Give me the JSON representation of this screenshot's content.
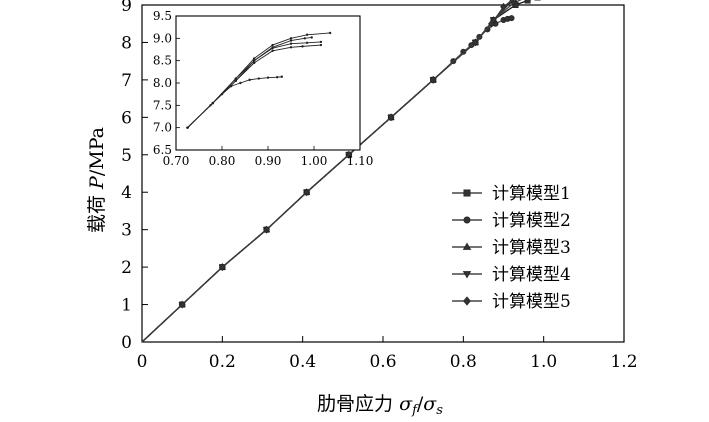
{
  "chart_data": {
    "type": "line",
    "title": "",
    "xlabel_prefix": "肋骨应力 ",
    "xlabel_sym": "σ",
    "xlabel_sub1": "f",
    "xlabel_slash": "/",
    "xlabel_sym2": "σ",
    "xlabel_sub2": "s",
    "ylabel_prefix": "载荷 ",
    "ylabel_sym": "P",
    "ylabel_unit": "/MPa",
    "xlim": [
      0,
      1.2
    ],
    "ylim": [
      0,
      9
    ],
    "x_ticks": [
      "0",
      "0.2",
      "0.4",
      "0.6",
      "0.8",
      "1.0",
      "1.2"
    ],
    "y_ticks": [
      "0",
      "1",
      "2",
      "3",
      "4",
      "5",
      "6",
      "7",
      "8",
      "9"
    ],
    "grid": false,
    "legend_position": "lower-right",
    "series": [
      {
        "name": "计算模型1",
        "marker": "square",
        "points": [
          [
            0,
            0
          ],
          [
            0.1,
            1
          ],
          [
            0.2,
            2
          ],
          [
            0.31,
            3
          ],
          [
            0.41,
            4
          ],
          [
            0.515,
            5
          ],
          [
            0.62,
            6
          ],
          [
            0.725,
            7
          ],
          [
            0.83,
            8
          ],
          [
            0.875,
            8.6
          ],
          [
            0.93,
            9.0
          ],
          [
            0.96,
            9.12
          ],
          [
            0.985,
            9.2
          ],
          [
            1.01,
            9.23
          ]
        ]
      },
      {
        "name": "计算模型2",
        "marker": "circle",
        "points": [
          [
            0,
            0
          ],
          [
            0.1,
            1
          ],
          [
            0.2,
            2
          ],
          [
            0.31,
            3
          ],
          [
            0.41,
            4
          ],
          [
            0.515,
            5
          ],
          [
            0.62,
            6
          ],
          [
            0.725,
            7
          ],
          [
            0.775,
            7.5
          ],
          [
            0.8,
            7.75
          ],
          [
            0.82,
            7.93
          ],
          [
            0.84,
            8.15
          ],
          [
            0.86,
            8.35
          ],
          [
            0.88,
            8.5
          ],
          [
            0.9,
            8.6
          ],
          [
            0.91,
            8.63
          ],
          [
            0.92,
            8.65
          ]
        ]
      },
      {
        "name": "计算模型3",
        "marker": "triangle-up",
        "points": [
          [
            0,
            0
          ],
          [
            0.1,
            1
          ],
          [
            0.2,
            2
          ],
          [
            0.31,
            3
          ],
          [
            0.41,
            4
          ],
          [
            0.515,
            5
          ],
          [
            0.62,
            6
          ],
          [
            0.725,
            7
          ],
          [
            0.83,
            8
          ],
          [
            0.875,
            8.6
          ],
          [
            0.92,
            9.1
          ],
          [
            0.95,
            9.3
          ],
          [
            0.975,
            9.42
          ],
          [
            1.0,
            9.48
          ],
          [
            1.03,
            9.5
          ]
        ]
      },
      {
        "name": "计算模型4",
        "marker": "triangle-down",
        "points": [
          [
            0,
            0
          ],
          [
            0.1,
            1
          ],
          [
            0.2,
            2
          ],
          [
            0.31,
            3
          ],
          [
            0.41,
            4
          ],
          [
            0.515,
            5
          ],
          [
            0.62,
            6
          ],
          [
            0.725,
            7
          ],
          [
            0.83,
            8
          ],
          [
            0.875,
            8.6
          ],
          [
            0.925,
            9.05
          ],
          [
            0.955,
            9.2
          ],
          [
            0.98,
            9.26
          ],
          [
            1.005,
            9.28
          ],
          [
            1.01,
            9.28
          ]
        ]
      },
      {
        "name": "计算模型5",
        "marker": "diamond",
        "points": [
          [
            0,
            0
          ],
          [
            0.1,
            1
          ],
          [
            0.2,
            2
          ],
          [
            0.31,
            3
          ],
          [
            0.41,
            4
          ],
          [
            0.515,
            5
          ],
          [
            0.62,
            6
          ],
          [
            0.725,
            7
          ],
          [
            0.83,
            8
          ],
          [
            0.87,
            8.5
          ],
          [
            0.9,
            8.95
          ],
          [
            0.93,
            9.2
          ],
          [
            0.955,
            9.32
          ],
          [
            0.975,
            9.38
          ],
          [
            0.99,
            9.4
          ]
        ]
      }
    ],
    "inset": {
      "xlim": [
        0.7,
        1.1
      ],
      "ylim": [
        6.5,
        9.5
      ],
      "x_ticks": [
        "0.70",
        "0.80",
        "0.90",
        "1.00",
        "1.10"
      ],
      "y_ticks": [
        "6.5",
        "7.0",
        "7.5",
        "8.0",
        "8.5",
        "9.0",
        "9.5"
      ],
      "series": [
        {
          "points": [
            [
              0.725,
              7.0
            ],
            [
              0.78,
              7.55
            ],
            [
              0.83,
              8.05
            ],
            [
              0.87,
              8.45
            ],
            [
              0.91,
              8.72
            ],
            [
              0.95,
              8.8
            ],
            [
              0.975,
              8.82
            ],
            [
              1.015,
              8.85
            ]
          ]
        },
        {
          "points": [
            [
              0.725,
              7.0
            ],
            [
              0.775,
              7.5
            ],
            [
              0.8,
              7.75
            ],
            [
              0.82,
              7.93
            ],
            [
              0.84,
              8.0
            ],
            [
              0.86,
              8.07
            ],
            [
              0.88,
              8.1
            ],
            [
              0.9,
              8.12
            ],
            [
              0.92,
              8.13
            ],
            [
              0.93,
              8.14
            ]
          ]
        },
        {
          "points": [
            [
              0.725,
              7.0
            ],
            [
              0.78,
              7.55
            ],
            [
              0.83,
              8.1
            ],
            [
              0.87,
              8.55
            ],
            [
              0.91,
              8.85
            ],
            [
              0.95,
              9.0
            ],
            [
              0.985,
              9.08
            ],
            [
              1.035,
              9.12
            ]
          ]
        },
        {
          "points": [
            [
              0.725,
              7.0
            ],
            [
              0.78,
              7.55
            ],
            [
              0.83,
              8.05
            ],
            [
              0.87,
              8.5
            ],
            [
              0.91,
              8.78
            ],
            [
              0.95,
              8.88
            ],
            [
              0.985,
              8.9
            ],
            [
              1.015,
              8.92
            ]
          ]
        },
        {
          "points": [
            [
              0.725,
              7.0
            ],
            [
              0.78,
              7.55
            ],
            [
              0.83,
              8.1
            ],
            [
              0.87,
              8.5
            ],
            [
              0.91,
              8.8
            ],
            [
              0.95,
              8.95
            ],
            [
              0.98,
              9.0
            ],
            [
              0.995,
              9.02
            ]
          ]
        }
      ]
    }
  }
}
